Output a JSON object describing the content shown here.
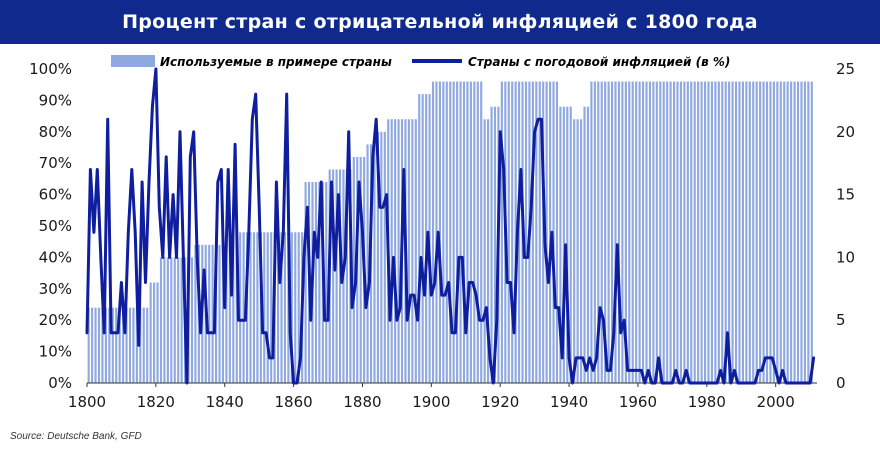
{
  "header": {
    "title": "Процент стран с отрицательной инфляцией с 1800 года"
  },
  "source": "Source: Deutsche Bank, GFD",
  "chart_data": {
    "type": "bar+line",
    "title": "Процент стран с отрицательной инфляцией с 1800 года",
    "x_ticks": [
      1800,
      1820,
      1840,
      1860,
      1880,
      1900,
      1920,
      1940,
      1960,
      1980,
      2000
    ],
    "xlim": [
      1800,
      2012
    ],
    "y_left_ticks": [
      "0%",
      "10%",
      "20%",
      "30%",
      "40%",
      "50%",
      "60%",
      "70%",
      "80%",
      "90%",
      "100%"
    ],
    "y_left_lim": [
      0,
      100
    ],
    "y_right_ticks": [
      "0",
      "5",
      "10",
      "15",
      "20",
      "25"
    ],
    "y_right_lim": [
      0,
      25
    ],
    "legend_position": "top",
    "bar_series": {
      "name": "Используемые в примере страны",
      "axis": "left",
      "color": "#8fa8e0",
      "steps": [
        {
          "from": 1800,
          "to": 1818,
          "value": 24
        },
        {
          "from": 1818,
          "to": 1821,
          "value": 32
        },
        {
          "from": 1821,
          "to": 1831,
          "value": 40
        },
        {
          "from": 1831,
          "to": 1842,
          "value": 44
        },
        {
          "from": 1842,
          "to": 1863,
          "value": 48
        },
        {
          "from": 1863,
          "to": 1870,
          "value": 64
        },
        {
          "from": 1870,
          "to": 1877,
          "value": 68
        },
        {
          "from": 1877,
          "to": 1881,
          "value": 72
        },
        {
          "from": 1881,
          "to": 1883,
          "value": 76
        },
        {
          "from": 1883,
          "to": 1887,
          "value": 80
        },
        {
          "from": 1887,
          "to": 1896,
          "value": 84
        },
        {
          "from": 1896,
          "to": 1900,
          "value": 92
        },
        {
          "from": 1900,
          "to": 1915,
          "value": 96
        },
        {
          "from": 1915,
          "to": 1917,
          "value": 84
        },
        {
          "from": 1917,
          "to": 1920,
          "value": 88
        },
        {
          "from": 1920,
          "to": 1937,
          "value": 96
        },
        {
          "from": 1937,
          "to": 1941,
          "value": 88
        },
        {
          "from": 1941,
          "to": 1944,
          "value": 84
        },
        {
          "from": 1944,
          "to": 1946,
          "value": 88
        },
        {
          "from": 1946,
          "to": 2011,
          "value": 96
        }
      ]
    },
    "line_series": {
      "name": "Страны с погодовой инфляцией (в %)",
      "axis": "right",
      "color": "#0f1e9e",
      "x": [
        1800,
        1801,
        1802,
        1803,
        1804,
        1805,
        1806,
        1807,
        1808,
        1809,
        1810,
        1811,
        1812,
        1813,
        1814,
        1815,
        1816,
        1817,
        1818,
        1819,
        1820,
        1821,
        1822,
        1823,
        1824,
        1825,
        1826,
        1827,
        1828,
        1829,
        1830,
        1831,
        1832,
        1833,
        1834,
        1835,
        1836,
        1837,
        1838,
        1839,
        1840,
        1841,
        1842,
        1843,
        1844,
        1845,
        1846,
        1847,
        1848,
        1849,
        1850,
        1851,
        1852,
        1853,
        1854,
        1855,
        1856,
        1857,
        1858,
        1859,
        1860,
        1861,
        1862,
        1863,
        1864,
        1865,
        1866,
        1867,
        1868,
        1869,
        1870,
        1871,
        1872,
        1873,
        1874,
        1875,
        1876,
        1877,
        1878,
        1879,
        1880,
        1881,
        1882,
        1883,
        1884,
        1885,
        1886,
        1887,
        1888,
        1889,
        1890,
        1891,
        1892,
        1893,
        1894,
        1895,
        1896,
        1897,
        1898,
        1899,
        1900,
        1901,
        1902,
        1903,
        1904,
        1905,
        1906,
        1907,
        1908,
        1909,
        1910,
        1911,
        1912,
        1913,
        1914,
        1915,
        1916,
        1917,
        1918,
        1919,
        1920,
        1921,
        1922,
        1923,
        1924,
        1925,
        1926,
        1927,
        1928,
        1929,
        1930,
        1931,
        1932,
        1933,
        1934,
        1935,
        1936,
        1937,
        1938,
        1939,
        1940,
        1941,
        1942,
        1943,
        1944,
        1945,
        1946,
        1947,
        1948,
        1949,
        1950,
        1951,
        1952,
        1953,
        1954,
        1955,
        1956,
        1957,
        1958,
        1959,
        1960,
        1961,
        1962,
        1963,
        1964,
        1965,
        1966,
        1967,
        1968,
        1969,
        1970,
        1971,
        1972,
        1973,
        1974,
        1975,
        1976,
        1977,
        1978,
        1979,
        1980,
        1981,
        1982,
        1983,
        1984,
        1985,
        1986,
        1987,
        1988,
        1989,
        1990,
        1991,
        1992,
        1993,
        1994,
        1995,
        1996,
        1997,
        1998,
        1999,
        2000,
        2001,
        2002,
        2003,
        2004,
        2005,
        2006,
        2007,
        2008,
        2009,
        2010,
        2011
      ],
      "values": [
        4,
        17,
        12,
        17,
        10,
        4,
        21,
        4,
        4,
        4,
        8,
        4,
        12,
        17,
        12,
        3,
        16,
        8,
        16,
        22,
        25,
        14,
        10,
        18,
        10,
        15,
        10,
        20,
        10,
        0,
        18,
        20,
        10,
        4,
        9,
        4,
        4,
        4,
        16,
        17,
        6,
        17,
        7,
        19,
        5,
        5,
        5,
        12,
        21,
        23,
        14,
        4,
        4,
        2,
        2,
        16,
        8,
        12,
        23,
        4,
        0,
        0,
        2,
        10,
        14,
        5,
        12,
        10,
        16,
        5,
        5,
        16,
        9,
        15,
        8,
        10,
        20,
        6,
        8,
        16,
        12,
        6,
        8,
        18,
        21,
        14,
        14,
        15,
        5,
        10,
        5,
        6,
        17,
        5,
        7,
        7,
        5,
        10,
        7,
        12,
        7,
        8,
        12,
        7,
        7,
        8,
        4,
        4,
        10,
        10,
        4,
        8,
        8,
        7,
        5,
        5,
        6,
        2,
        0,
        5,
        20,
        17,
        8,
        8,
        4,
        12,
        17,
        10,
        10,
        14,
        20,
        21,
        21,
        11,
        8,
        12,
        6,
        6,
        2,
        11,
        2,
        0,
        2,
        2,
        2,
        1,
        2,
        1,
        2,
        6,
        5,
        1,
        1,
        4,
        11,
        4,
        5,
        1,
        1,
        1,
        1,
        1,
        0,
        1,
        0,
        0,
        2,
        0,
        0,
        0,
        0,
        1,
        0,
        0,
        1,
        0,
        0,
        0,
        0,
        0,
        0,
        0,
        0,
        0,
        1,
        0,
        4,
        0,
        1,
        0,
        0,
        0,
        0,
        0,
        0,
        1,
        1,
        2,
        2,
        2,
        1,
        0,
        1,
        0,
        0,
        0,
        0,
        0,
        0,
        0,
        0,
        2
      ]
    }
  }
}
